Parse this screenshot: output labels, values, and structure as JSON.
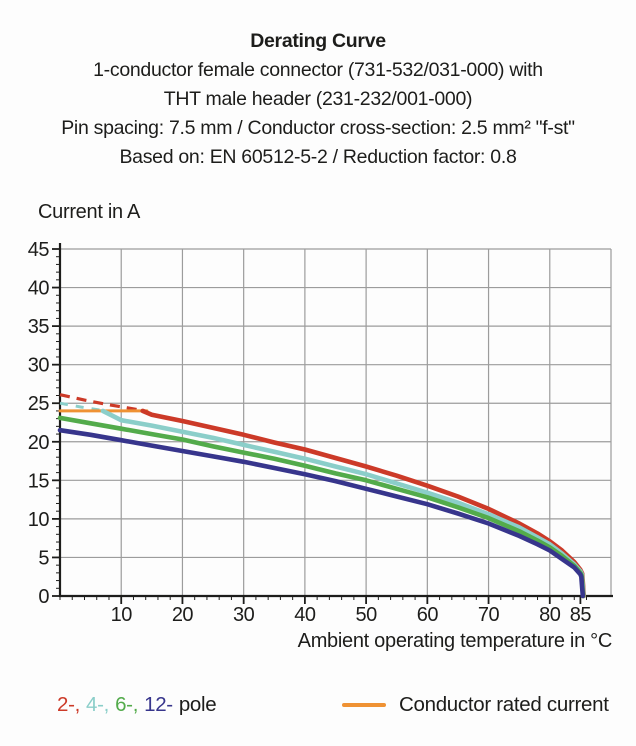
{
  "header": {
    "title": "Derating Curve",
    "subtitle_lines": [
      "1-conductor female connector (731-532/031-000) with",
      "THT male header (231-232/001-000)",
      "Pin spacing: 7.5 mm / Conductor cross-section: 2.5 mm² \"f-st\"",
      "Based on: EN 60512-5-2 / Reduction factor: 0.8"
    ]
  },
  "legend": {
    "poles": [
      {
        "label": "2-,",
        "color": "#cc3a28"
      },
      {
        "label": "4-,",
        "color": "#8bcec9"
      },
      {
        "label": "6-,",
        "color": "#53ab4b"
      },
      {
        "label": "12-",
        "color": "#37358c"
      }
    ],
    "pole_suffix": "pole",
    "rated": {
      "label": "Conductor rated current",
      "color": "#ef9234"
    }
  },
  "chart_data": {
    "type": "line",
    "title": "Derating Curve",
    "x_axis": {
      "label": "Ambient operating temperature in °C",
      "min": 0,
      "max": 90,
      "major_step": 10,
      "minor_step": 2,
      "tick_labels": [
        10,
        20,
        30,
        40,
        50,
        60,
        70,
        80,
        85
      ]
    },
    "y_axis": {
      "label": "Current in A",
      "min": 0,
      "max": 45,
      "major_step": 5,
      "minor_step": 1,
      "tick_labels": [
        0,
        5,
        10,
        15,
        20,
        25,
        30,
        35,
        40,
        45
      ]
    },
    "colors": {
      "grid": "#9c9c9c",
      "axis": "#1d1d1b"
    },
    "series": [
      {
        "name": "2-pole-above-rated",
        "color": "#cc3a28",
        "width": 3.2,
        "dash": "10 7",
        "points": [
          [
            0,
            26.1
          ],
          [
            4,
            25.4
          ],
          [
            8,
            24.8
          ],
          [
            11,
            24.4
          ],
          [
            13.5,
            24.05
          ]
        ]
      },
      {
        "name": "4-pole-above-rated",
        "color": "#8bcec9",
        "width": 3,
        "dash": "8 8",
        "points": [
          [
            0,
            25.0
          ],
          [
            3.5,
            24.5
          ],
          [
            7,
            24.05
          ]
        ]
      },
      {
        "name": "conductor-rated-current",
        "color": "#ef9234",
        "width": 3,
        "points": [
          [
            0,
            24
          ],
          [
            14.2,
            24
          ]
        ]
      },
      {
        "name": "2-pole",
        "color": "#cc3a28",
        "width": 4.6,
        "points": [
          [
            13.5,
            24
          ],
          [
            15,
            23.5
          ],
          [
            20,
            22.7
          ],
          [
            25,
            21.8
          ],
          [
            30,
            20.9
          ],
          [
            35,
            19.9
          ],
          [
            40,
            19.0
          ],
          [
            45,
            17.9
          ],
          [
            50,
            16.8
          ],
          [
            55,
            15.6
          ],
          [
            60,
            14.3
          ],
          [
            65,
            12.9
          ],
          [
            70,
            11.3
          ],
          [
            75,
            9.4
          ],
          [
            78,
            8.1
          ],
          [
            80,
            7.1
          ],
          [
            82,
            5.9
          ],
          [
            84,
            4.4
          ],
          [
            85,
            3.4
          ],
          [
            85.3,
            2.9
          ],
          [
            85.55,
            0
          ]
        ]
      },
      {
        "name": "4-pole",
        "color": "#8bcec9",
        "width": 4.6,
        "points": [
          [
            7,
            24
          ],
          [
            10,
            22.8
          ],
          [
            15,
            22.1
          ],
          [
            20,
            21.3
          ],
          [
            25,
            20.5
          ],
          [
            30,
            19.6
          ],
          [
            35,
            18.7
          ],
          [
            40,
            17.8
          ],
          [
            45,
            16.8
          ],
          [
            50,
            15.8
          ],
          [
            55,
            14.6
          ],
          [
            60,
            13.4
          ],
          [
            65,
            12.1
          ],
          [
            70,
            10.6
          ],
          [
            75,
            8.9
          ],
          [
            78,
            7.6
          ],
          [
            80,
            6.7
          ],
          [
            82,
            5.5
          ],
          [
            84,
            4.1
          ],
          [
            85,
            3.2
          ],
          [
            85.25,
            2.8
          ],
          [
            85.5,
            0
          ]
        ]
      },
      {
        "name": "6-pole",
        "color": "#53ab4b",
        "width": 4.6,
        "points": [
          [
            0,
            23.1
          ],
          [
            5,
            22.4
          ],
          [
            10,
            21.7
          ],
          [
            15,
            21.0
          ],
          [
            20,
            20.3
          ],
          [
            25,
            19.4
          ],
          [
            30,
            18.6
          ],
          [
            35,
            17.8
          ],
          [
            40,
            16.9
          ],
          [
            45,
            15.9
          ],
          [
            50,
            15.0
          ],
          [
            55,
            13.9
          ],
          [
            60,
            12.8
          ],
          [
            65,
            11.5
          ],
          [
            70,
            10.1
          ],
          [
            75,
            8.4
          ],
          [
            78,
            7.2
          ],
          [
            80,
            6.3
          ],
          [
            82,
            5.2
          ],
          [
            84,
            3.9
          ],
          [
            85,
            3.0
          ],
          [
            85.2,
            2.7
          ],
          [
            85.45,
            0
          ]
        ]
      },
      {
        "name": "12-pole",
        "color": "#37358c",
        "width": 4.6,
        "points": [
          [
            0,
            21.5
          ],
          [
            5,
            20.9
          ],
          [
            10,
            20.2
          ],
          [
            15,
            19.5
          ],
          [
            20,
            18.8
          ],
          [
            25,
            18.1
          ],
          [
            30,
            17.4
          ],
          [
            35,
            16.6
          ],
          [
            40,
            15.8
          ],
          [
            45,
            14.9
          ],
          [
            50,
            13.9
          ],
          [
            55,
            12.9
          ],
          [
            60,
            11.9
          ],
          [
            65,
            10.7
          ],
          [
            70,
            9.4
          ],
          [
            75,
            7.8
          ],
          [
            78,
            6.7
          ],
          [
            80,
            5.9
          ],
          [
            82,
            4.8
          ],
          [
            84,
            3.7
          ],
          [
            85,
            2.8
          ],
          [
            85.15,
            2.5
          ],
          [
            85.4,
            0
          ]
        ]
      }
    ]
  }
}
